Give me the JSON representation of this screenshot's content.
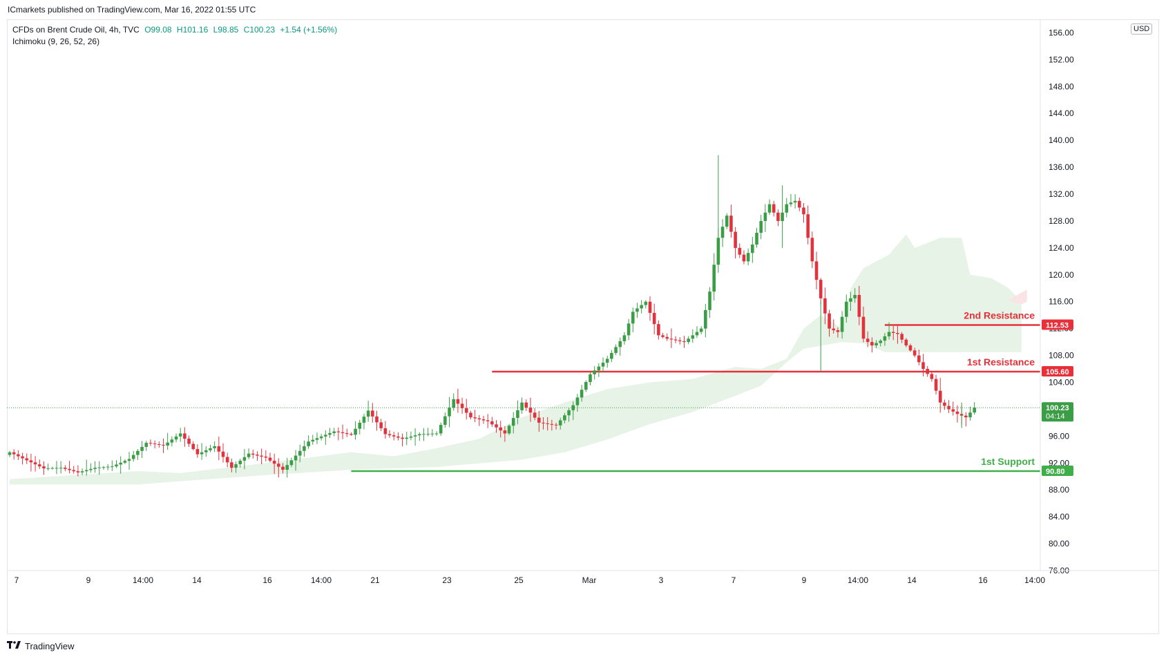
{
  "publisher_line": "ICmarkets published on TradingView.com, Mar 16, 2022 01:55 UTC",
  "legend": {
    "symbol": "CFDs on Brent Crude Oil, 4h, TVC",
    "open": "O99.08",
    "high": "H101.16",
    "low": "L98.85",
    "close": "C100.23",
    "change": "+1.54 (+1.56%)",
    "indicator": "Ichimoku (9, 26, 52, 26)"
  },
  "footer": {
    "brand": "TradingView",
    "logo": "tradingview-logo-icon"
  },
  "colors": {
    "up": "#3c9d47",
    "down": "#e0333d",
    "resistance": "#e8303a",
    "support": "#3fae49",
    "cloud_green": "#e6f3e6",
    "cloud_red": "#fbe3e3"
  },
  "chart_data": {
    "type": "candlestick",
    "currency": "USD",
    "ylim": [
      76,
      158
    ],
    "y_ticks": [
      "156.00",
      "152.00",
      "148.00",
      "144.00",
      "140.00",
      "136.00",
      "132.00",
      "128.00",
      "124.00",
      "120.00",
      "116.00",
      "112.00",
      "108.00",
      "104.00",
      "100.00",
      "96.00",
      "92.00",
      "88.00",
      "84.00",
      "80.00",
      "76.00"
    ],
    "x_ticks": [
      "7",
      "9",
      "14:00",
      "14",
      "16",
      "14:00",
      "21",
      "23",
      "25",
      "Mar",
      "3",
      "7",
      "9",
      "14:00",
      "14",
      "16",
      "14:00"
    ],
    "levels": [
      {
        "label": "2nd Resistance",
        "value": "112.53",
        "price": 112.53,
        "kind": "resistance"
      },
      {
        "label": "1st Resistance",
        "value": "105.60",
        "price": 105.6,
        "kind": "resistance"
      },
      {
        "label": "1st Support",
        "value": "90.80",
        "price": 90.8,
        "kind": "support"
      }
    ],
    "last_price": {
      "value": "100.23",
      "countdown": "04:14",
      "price": 100.23
    },
    "anchors": [
      [
        0,
        93.6
      ],
      [
        8,
        91.2
      ],
      [
        12,
        91.3
      ],
      [
        16,
        90.6
      ],
      [
        20,
        91.3
      ],
      [
        24,
        91.5
      ],
      [
        28,
        92.6
      ],
      [
        32,
        95.0
      ],
      [
        36,
        94.6
      ],
      [
        40,
        96.4
      ],
      [
        44,
        93.3
      ],
      [
        48,
        94.5
      ],
      [
        52,
        91.3
      ],
      [
        56,
        93.4
      ],
      [
        60,
        92.8
      ],
      [
        64,
        91.0
      ],
      [
        70,
        95.2
      ],
      [
        76,
        96.7
      ],
      [
        80,
        96.2
      ],
      [
        84,
        99.8
      ],
      [
        88,
        96.3
      ],
      [
        92,
        95.6
      ],
      [
        96,
        96.3
      ],
      [
        100,
        96.4
      ],
      [
        104,
        101.5
      ],
      [
        108,
        98.8
      ],
      [
        112,
        98.2
      ],
      [
        116,
        96.4
      ],
      [
        120,
        101.0
      ],
      [
        124,
        98.0
      ],
      [
        128,
        97.6
      ],
      [
        132,
        100.6
      ],
      [
        136,
        105.2
      ],
      [
        140,
        107.5
      ],
      [
        144,
        111.0
      ],
      [
        146,
        114.5
      ],
      [
        149,
        116.0
      ],
      [
        152,
        111.0
      ],
      [
        154,
        110.5
      ],
      [
        158,
        110.0
      ],
      [
        162,
        112.0
      ],
      [
        164,
        117.5
      ],
      [
        166,
        125.5
      ],
      [
        168,
        128.8
      ],
      [
        170,
        124.0
      ],
      [
        172,
        122.0
      ],
      [
        174,
        124.5
      ],
      [
        176,
        128.0
      ],
      [
        178,
        130.5
      ],
      [
        180,
        128.0
      ],
      [
        182,
        130.5
      ],
      [
        184,
        131.0
      ],
      [
        186,
        129.0
      ],
      [
        188,
        122.0
      ],
      [
        190,
        116.5
      ],
      [
        192,
        112.0
      ],
      [
        194,
        111.5
      ],
      [
        196,
        116.0
      ],
      [
        198,
        117.0
      ],
      [
        200,
        110.5
      ],
      [
        202,
        109.5
      ],
      [
        204,
        110.2
      ],
      [
        206,
        111.5
      ],
      [
        208,
        111.2
      ],
      [
        210,
        109.5
      ],
      [
        212,
        108.0
      ],
      [
        214,
        106.0
      ],
      [
        216,
        104.5
      ],
      [
        218,
        101.0
      ],
      [
        220,
        100.0
      ],
      [
        222,
        99.3
      ],
      [
        224,
        98.8
      ],
      [
        226,
        100.23
      ]
    ],
    "cloud": {
      "lower": [
        [
          0,
          88.8
        ],
        [
          30,
          88.8
        ],
        [
          40,
          89.3
        ],
        [
          60,
          90.2
        ],
        [
          80,
          91.0
        ],
        [
          100,
          91.4
        ],
        [
          120,
          92.5
        ],
        [
          130,
          93.6
        ],
        [
          140,
          95.5
        ],
        [
          150,
          97.8
        ],
        [
          160,
          99.6
        ],
        [
          170,
          102.0
        ],
        [
          176,
          103.5
        ],
        [
          182,
          107.0
        ],
        [
          186,
          109.0
        ],
        [
          195,
          110.0
        ],
        [
          200,
          109.8
        ],
        [
          205,
          108.5
        ]
      ],
      "upper": [
        [
          0,
          89.6
        ],
        [
          30,
          90.8
        ],
        [
          40,
          90.5
        ],
        [
          60,
          92.0
        ],
        [
          80,
          93.6
        ],
        [
          90,
          93.0
        ],
        [
          100,
          94.2
        ],
        [
          110,
          95.6
        ],
        [
          120,
          98.8
        ],
        [
          130,
          101.0
        ],
        [
          140,
          103.0
        ],
        [
          150,
          104.0
        ],
        [
          160,
          104.5
        ],
        [
          170,
          106.3
        ],
        [
          176,
          106.0
        ],
        [
          182,
          107.5
        ],
        [
          186,
          112.0
        ],
        [
          190,
          114.0
        ],
        [
          195,
          112.0
        ],
        [
          197,
          118.0
        ],
        [
          200,
          121.0
        ],
        [
          206,
          123.0
        ],
        [
          210,
          126.0
        ],
        [
          212,
          124.0
        ],
        [
          218,
          125.5
        ],
        [
          223,
          125.5
        ],
        [
          225,
          120.0
        ],
        [
          230,
          119.5
        ],
        [
          234,
          118.0
        ],
        [
          237,
          116.0
        ]
      ]
    }
  }
}
